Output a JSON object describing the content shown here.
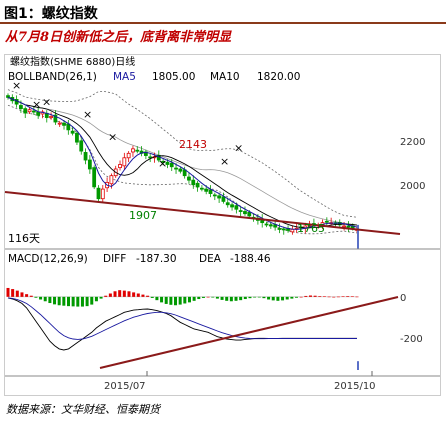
{
  "header": {
    "title": "图1：螺纹指数"
  },
  "headline": "从7月8日创新低之后，底背离非常明显",
  "source": "数据来源：文华财经、恒泰期货",
  "colors": {
    "up": "#e00000",
    "down": "#009900",
    "trendline": "#8b1a1a",
    "ma5": "#1a1aa0",
    "ma10": "#000000",
    "boll": "#444444"
  },
  "chart_data": [
    {
      "type": "candlestick",
      "series_name": "螺纹指数(SHME 6880)日线",
      "indicator": "BOLLBAND(26,1)",
      "ma_labels": [
        {
          "name": "MA5",
          "value": "1805.00"
        },
        {
          "name": "MA10",
          "value": "1820.00"
        }
      ],
      "y_ticks": [
        "2200",
        "2000"
      ],
      "ylim": [
        1700,
        2420
      ],
      "annotations": [
        {
          "text": "2143",
          "label_color": "#c00000"
        },
        {
          "text": "1907",
          "label_color": "#008000"
        },
        {
          "text": "1765",
          "label_color": "#008000"
        },
        {
          "text": "116天",
          "label_color": "#000000"
        }
      ],
      "trendline_note": "downward support line",
      "closes": [
        2360,
        2345,
        2330,
        2310,
        2290,
        2305,
        2295,
        2280,
        2295,
        2270,
        2275,
        2250,
        2245,
        2235,
        2215,
        2200,
        2160,
        2120,
        2080,
        2040,
        1960,
        1907,
        1950,
        1980,
        2010,
        2040,
        2060,
        2090,
        2110,
        2130,
        2120,
        2110,
        2100,
        2090,
        2095,
        2080,
        2070,
        2060,
        2050,
        2040,
        2030,
        2010,
        1990,
        1970,
        1960,
        1950,
        1940,
        1930,
        1920,
        1910,
        1895,
        1880,
        1870,
        1860,
        1850,
        1840,
        1830,
        1820,
        1810,
        1800,
        1790,
        1785,
        1780,
        1772,
        1768,
        1765,
        1770,
        1775,
        1780,
        1785,
        1790,
        1795,
        1790,
        1800,
        1805,
        1800,
        1795,
        1790,
        1785,
        1780,
        1775,
        1770
      ]
    },
    {
      "type": "bar",
      "indicator": "MACD(12,26,9)",
      "readouts": [
        {
          "name": "DIFF",
          "value": "-187.30"
        },
        {
          "name": "DEA",
          "value": "-188.46"
        }
      ],
      "y_ticks": [
        "0",
        "-200"
      ],
      "ylim": [
        -330,
        130
      ],
      "macd": [
        40,
        35,
        28,
        20,
        12,
        5,
        -4,
        -12,
        -20,
        -28,
        -34,
        -38,
        -40,
        -42,
        -43,
        -44,
        -44,
        -42,
        -35,
        -20,
        -8,
        5,
        15,
        25,
        30,
        28,
        25,
        20,
        15,
        10,
        5,
        -5,
        -15,
        -25,
        -32,
        -36,
        -38,
        -35,
        -30,
        -25,
        -18,
        -10,
        -5,
        0,
        -3,
        -8,
        -14,
        -18,
        -20,
        -18,
        -15,
        -10,
        -6,
        -3,
        -2,
        -6,
        -12,
        -16,
        -18,
        -16,
        -12,
        -8,
        -4,
        0,
        4,
        6,
        5,
        3,
        2,
        1,
        0,
        1,
        2,
        3,
        2,
        1
      ],
      "diff": [
        -5,
        -10,
        -18,
        -30,
        -50,
        -80,
        -110,
        -140,
        -170,
        -200,
        -220,
        -235,
        -240,
        -235,
        -220,
        -205,
        -190,
        -175,
        -160,
        -140,
        -125,
        -110,
        -100,
        -90,
        -80,
        -70,
        -65,
        -60,
        -58,
        -56,
        -55,
        -58,
        -62,
        -68,
        -75,
        -85,
        -100,
        -115,
        -125,
        -135,
        -145,
        -150,
        -155,
        -160,
        -170,
        -180,
        -185,
        -190,
        -193,
        -195,
        -195,
        -192,
        -190,
        -188,
        -187,
        -187,
        -188,
        -188,
        -188,
        -187,
        -187,
        -187,
        -187,
        -187,
        -187,
        -187,
        -187,
        -187,
        -187,
        -187,
        -187,
        -187,
        -187,
        -187,
        -187,
        -187
      ],
      "dea": [
        -5,
        -7,
        -12,
        -20,
        -30,
        -45,
        -62,
        -80,
        -100,
        -120,
        -140,
        -160,
        -175,
        -185,
        -190,
        -192,
        -190,
        -185,
        -178,
        -168,
        -158,
        -148,
        -138,
        -128,
        -118,
        -108,
        -100,
        -92,
        -86,
        -80,
        -75,
        -72,
        -70,
        -70,
        -72,
        -76,
        -82,
        -90,
        -98,
        -106,
        -114,
        -122,
        -130,
        -138,
        -146,
        -154,
        -162,
        -168,
        -174,
        -179,
        -183,
        -186,
        -188,
        -189,
        -189,
        -189,
        -188,
        -188,
        -188,
        -188,
        -188,
        -188,
        -188,
        -188,
        -188,
        -188,
        -188,
        -188,
        -188,
        -188,
        -188,
        -188,
        -188,
        -188,
        -188,
        -188
      ]
    }
  ],
  "x_ticks": [
    "2015/07",
    "2015/10"
  ]
}
